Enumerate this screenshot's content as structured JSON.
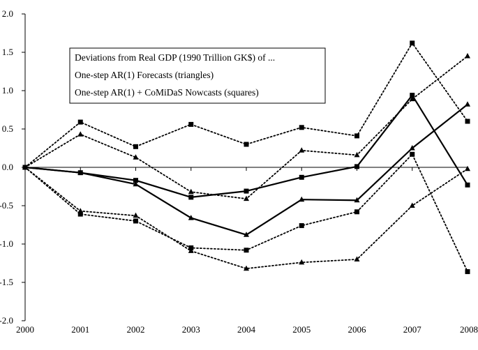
{
  "chart_data": {
    "type": "line",
    "title": "",
    "xlabel": "",
    "ylabel": "",
    "ylim": [
      -2.0,
      2.0
    ],
    "yticks": [
      "2.0",
      "1.5",
      "1.0",
      "0.5",
      "0.0",
      "-0.5",
      "-1.0",
      "-1.5",
      "-2.0"
    ],
    "ytick_values": [
      2.0,
      1.5,
      1.0,
      0.5,
      0.0,
      -0.5,
      -1.0,
      -1.5,
      -2.0
    ],
    "categories": [
      "2000",
      "2001",
      "2002",
      "2003",
      "2004",
      "2005",
      "2006",
      "2007",
      "2008"
    ],
    "grid": false,
    "legend_position": "top-left",
    "legend": [
      "Deviations from Real GDP (1990 Trillion GK$) of ...",
      "One-step AR(1) Forecasts (triangles)",
      "One-step AR(1) + CoMiDaS Nowcasts (squares)"
    ],
    "series": [
      {
        "marker": "triangle",
        "style": "solid",
        "values": [
          0,
          -0.07,
          -0.22,
          -0.66,
          -0.88,
          -0.42,
          -0.43,
          0.25,
          0.82
        ]
      },
      {
        "marker": "triangle",
        "style": "dotted",
        "values": [
          0,
          0.43,
          0.13,
          -0.32,
          -0.41,
          0.22,
          0.16,
          0.89,
          1.45
        ]
      },
      {
        "marker": "triangle",
        "style": "dotted",
        "values": [
          0,
          -0.57,
          -0.63,
          -1.09,
          -1.32,
          -1.24,
          -1.2,
          -0.5,
          -0.02
        ]
      },
      {
        "marker": "square",
        "style": "solid",
        "values": [
          0,
          -0.07,
          -0.17,
          -0.39,
          -0.31,
          -0.13,
          0.01,
          0.94,
          -0.23
        ]
      },
      {
        "marker": "square",
        "style": "dotted",
        "values": [
          0,
          0.59,
          0.27,
          0.56,
          0.3,
          0.52,
          0.41,
          1.62,
          0.6
        ]
      },
      {
        "marker": "square",
        "style": "dotted",
        "values": [
          0,
          -0.61,
          -0.7,
          -1.05,
          -1.08,
          -0.76,
          -0.58,
          0.17,
          -1.36
        ]
      }
    ]
  }
}
